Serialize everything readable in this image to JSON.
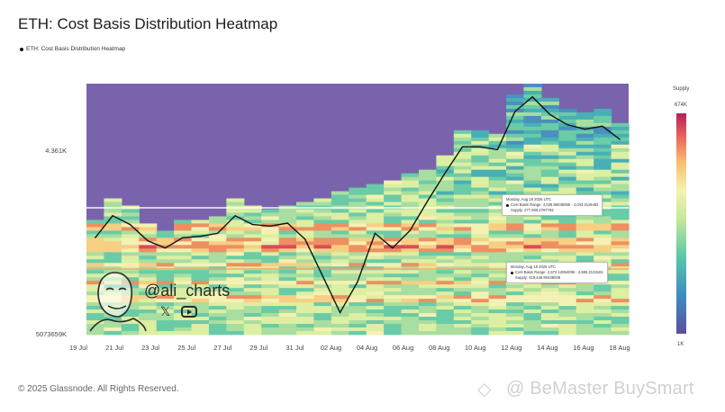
{
  "header": {
    "title": "ETH: Cost Basis Distribution Heatmap",
    "legend_label": "ETH: Cost Basis Distribution Heatmap"
  },
  "colorbar": {
    "title": "Supply",
    "max_label": "674K",
    "min_label": "1K",
    "colors": [
      "#5b4fa0",
      "#3c8fc0",
      "#5cc7a8",
      "#c5e89a",
      "#f6f2b0",
      "#f7be6f",
      "#e9605b",
      "#b3215b"
    ]
  },
  "watermark": {
    "handle": "@ali_charts",
    "brand": "@ BeMaster BuySmart"
  },
  "footer": {
    "copyright": "© 2025 Glassnode. All Rights Reserved."
  },
  "tooltips": [
    {
      "date": "Monday, Aug 18 2025 UTC",
      "range": "Cost Basis Range: 4,028.86036069 - 4,043.2116463",
      "supply": "Supply: 277,809.2787782"
    },
    {
      "date": "Monday, Aug 18 2025 UTC",
      "range": "Cost Basis Range: 2,672.12064096 - 2,686.2134161",
      "supply": "Supply: 419,448.90438038"
    }
  ],
  "chart_data": {
    "type": "heatmap",
    "title": "ETH: Cost Basis Distribution Heatmap",
    "x_tick_labels": [
      "19 Jul",
      "21 Jul",
      "23 Jul",
      "25 Jul",
      "27 Jul",
      "29 Jul",
      "31 Jul",
      "02 Aug",
      "04 Aug",
      "06 Aug",
      "08 Aug",
      "10 Aug",
      "12 Aug",
      "14 Aug",
      "16 Aug",
      "18 Aug"
    ],
    "y_tick_labels": [
      "4.361K",
      "5073659K"
    ],
    "grid": false,
    "legend": "top-left",
    "price_series": {
      "name": "ETH: Cost Basis Distribution Heatmap",
      "dates": [
        "19 Jul",
        "20 Jul",
        "21 Jul",
        "22 Jul",
        "23 Jul",
        "24 Jul",
        "25 Jul",
        "26 Jul",
        "27 Jul",
        "28 Jul",
        "29 Jul",
        "30 Jul",
        "31 Jul",
        "01 Aug",
        "02 Aug",
        "03 Aug",
        "04 Aug",
        "05 Aug",
        "06 Aug",
        "07 Aug",
        "08 Aug",
        "09 Aug",
        "10 Aug",
        "11 Aug",
        "12 Aug",
        "13 Aug",
        "14 Aug",
        "15 Aug",
        "16 Aug",
        "17 Aug",
        "18 Aug"
      ],
      "values": [
        3610,
        3760,
        3700,
        3590,
        3540,
        3610,
        3620,
        3640,
        3760,
        3700,
        3690,
        3710,
        3600,
        3350,
        3100,
        3310,
        3640,
        3540,
        3660,
        3860,
        4050,
        4230,
        4230,
        4210,
        4470,
        4570,
        4450,
        4380,
        4350,
        4370,
        4280
      ]
    },
    "heatmap_note": "cost basis supply bands per day; color scale from 1K to 674K supply"
  }
}
